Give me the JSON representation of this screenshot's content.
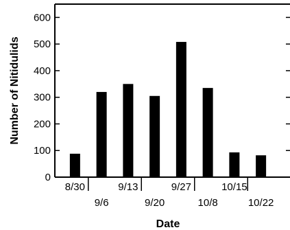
{
  "chart_data": {
    "type": "bar",
    "title": "",
    "xlabel": "Date",
    "ylabel": "Number of Nitidulids",
    "ylim": [
      0,
      650
    ],
    "yticks": [
      0,
      100,
      200,
      300,
      400,
      500,
      600
    ],
    "categories": [
      "8/30",
      "9/6",
      "9/13",
      "9/20",
      "9/27",
      "10/8",
      "10/15",
      "10/22"
    ],
    "values": [
      88,
      320,
      350,
      305,
      508,
      335,
      93,
      82
    ],
    "bar_color": "#000000",
    "grid": false
  }
}
